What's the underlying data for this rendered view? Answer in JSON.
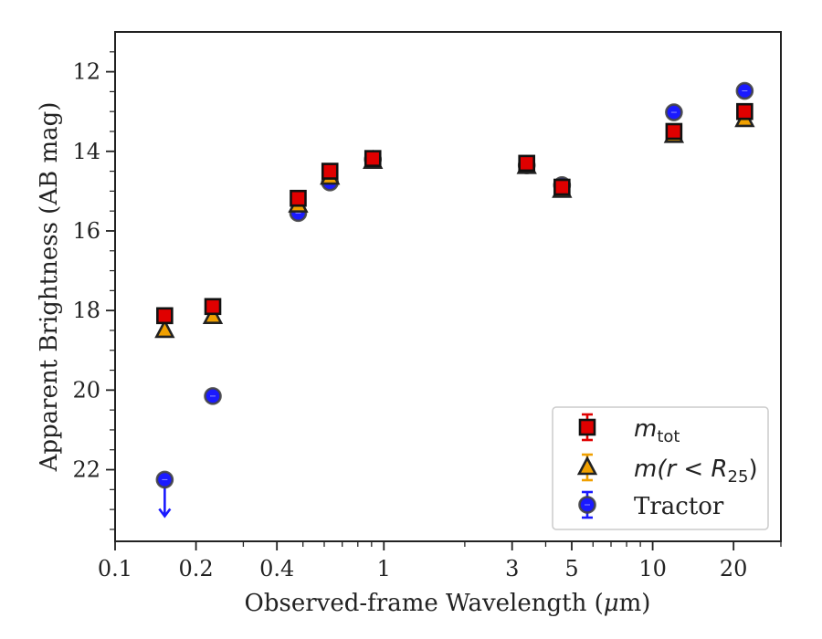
{
  "chart_data": {
    "type": "scatter",
    "xlabel_main": "Observed-frame Wavelength (",
    "xlabel_mu": "μ",
    "xlabel_unit": "m)",
    "ylabel": "Apparent Brightness (AB mag)",
    "xscale": "log",
    "xlim": [
      0.1,
      30
    ],
    "ylim": [
      23.8,
      11.0
    ],
    "y_inverted": true,
    "grid": false,
    "legend_placement": "bottom-right",
    "xticks": [
      {
        "value": 0.1,
        "label": "0.1"
      },
      {
        "value": 0.2,
        "label": "0.2"
      },
      {
        "value": 0.4,
        "label": "0.4"
      },
      {
        "value": 1,
        "label": "1"
      },
      {
        "value": 3,
        "label": "3"
      },
      {
        "value": 5,
        "label": "5"
      },
      {
        "value": 10,
        "label": "10"
      },
      {
        "value": 20,
        "label": "20"
      }
    ],
    "yticks": [
      {
        "value": 12,
        "label": "12"
      },
      {
        "value": 14,
        "label": "14"
      },
      {
        "value": 16,
        "label": "16"
      },
      {
        "value": 18,
        "label": "18"
      },
      {
        "value": 20,
        "label": "20"
      },
      {
        "value": 22,
        "label": "22"
      }
    ],
    "series": [
      {
        "key": "mtot",
        "legend_base": "m",
        "legend_sub": "tot",
        "marker": "square",
        "color": "#e00000",
        "edge": "#111111",
        "points": [
          {
            "x": 0.153,
            "y": 18.13
          },
          {
            "x": 0.231,
            "y": 17.9
          },
          {
            "x": 0.48,
            "y": 15.18
          },
          {
            "x": 0.63,
            "y": 14.5
          },
          {
            "x": 0.91,
            "y": 14.18
          },
          {
            "x": 3.4,
            "y": 14.3
          },
          {
            "x": 4.6,
            "y": 14.9
          },
          {
            "x": 12.0,
            "y": 13.5
          },
          {
            "x": 22.0,
            "y": 13.0
          }
        ]
      },
      {
        "key": "mr25",
        "legend_base": "m",
        "legend_rest": "(r < R",
        "legend_sub": "25",
        "legend_end": ")",
        "marker": "triangle",
        "color": "#f0a000",
        "edge": "#222222",
        "points": [
          {
            "x": 0.153,
            "y": 18.5
          },
          {
            "x": 0.231,
            "y": 18.15
          },
          {
            "x": 0.48,
            "y": 15.35
          },
          {
            "x": 0.63,
            "y": 14.65
          },
          {
            "x": 0.91,
            "y": 14.25
          },
          {
            "x": 3.4,
            "y": 14.38
          },
          {
            "x": 4.6,
            "y": 14.98
          },
          {
            "x": 12.0,
            "y": 13.6
          },
          {
            "x": 22.0,
            "y": 13.2
          }
        ]
      },
      {
        "key": "tractor",
        "name": "Tractor",
        "marker": "circle",
        "color": "#1a1aff",
        "edge": "#444444",
        "points": [
          {
            "x": 0.153,
            "y": 22.25,
            "upper_limit": true
          },
          {
            "x": 0.231,
            "y": 20.15
          },
          {
            "x": 0.48,
            "y": 15.55
          },
          {
            "x": 0.63,
            "y": 14.78
          },
          {
            "x": 0.91,
            "y": 14.2
          },
          {
            "x": 3.4,
            "y": 14.35
          },
          {
            "x": 4.6,
            "y": 14.85
          },
          {
            "x": 12.0,
            "y": 13.02
          },
          {
            "x": 22.0,
            "y": 12.48
          }
        ]
      }
    ]
  }
}
